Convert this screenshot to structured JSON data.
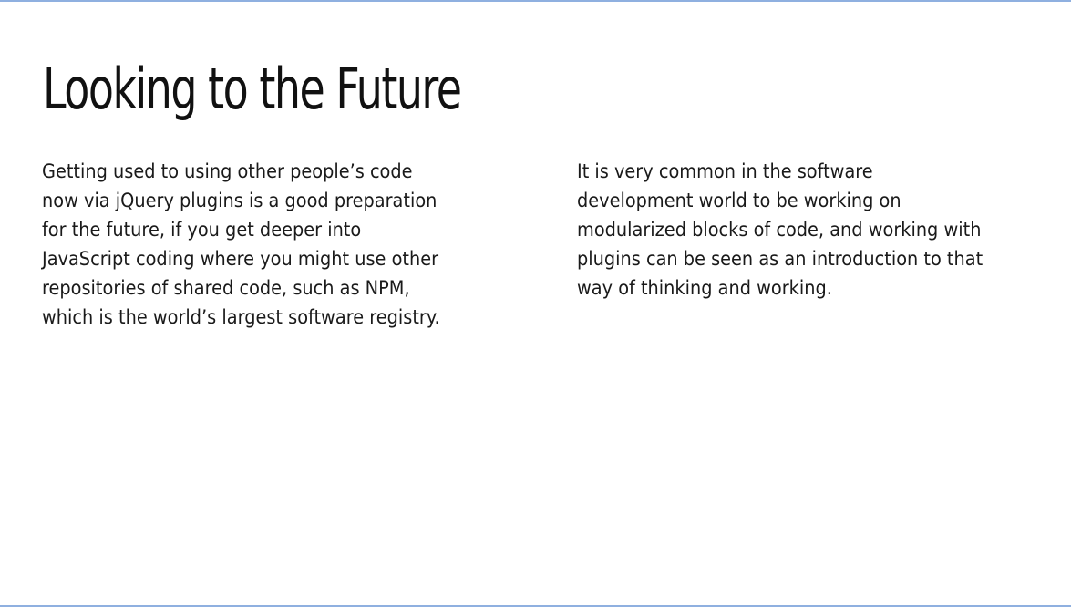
{
  "slide": {
    "title": "Looking to the Future",
    "left_column": {
      "lines": [
        "Getting used to using other people’s code",
        "now via jQuery plugins is a good preparation",
        "for the future, if you get deeper into",
        "JavaScript coding where you might use other",
        "repositories of shared code, such as NPM,",
        "which is the world’s largest software registry."
      ]
    },
    "right_column": {
      "lines": [
        "It is very common in the software",
        "development world to be working on",
        "modularized blocks of code, and working with",
        "plugins can be seen as an introduction to that",
        "way of thinking and working."
      ]
    },
    "accent_color": "#8fb0e0"
  }
}
